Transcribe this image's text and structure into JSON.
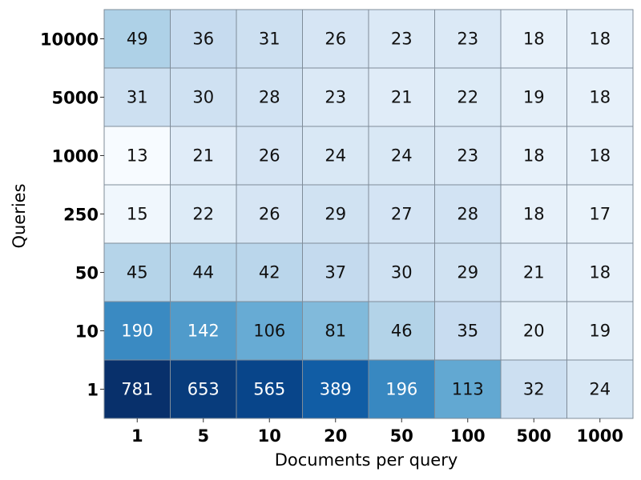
{
  "chart_data": {
    "type": "heatmap",
    "title": "",
    "xlabel": "Documents per query",
    "ylabel": "Queries",
    "x_categories": [
      "1",
      "5",
      "10",
      "20",
      "50",
      "100",
      "500",
      "1000"
    ],
    "y_categories": [
      "10000",
      "5000",
      "1000",
      "250",
      "50",
      "10",
      "1"
    ],
    "values": [
      [
        49,
        36,
        31,
        26,
        23,
        23,
        18,
        18
      ],
      [
        31,
        30,
        28,
        23,
        21,
        22,
        19,
        18
      ],
      [
        13,
        21,
        26,
        24,
        24,
        23,
        18,
        18
      ],
      [
        15,
        22,
        26,
        29,
        27,
        28,
        18,
        17
      ],
      [
        45,
        44,
        42,
        37,
        30,
        29,
        21,
        18
      ],
      [
        190,
        142,
        106,
        81,
        46,
        35,
        20,
        19
      ],
      [
        781,
        653,
        565,
        389,
        196,
        113,
        32,
        24
      ]
    ],
    "colormap": "Blues",
    "grid": true,
    "colors": {
      "low": "#f7fbff",
      "high": "#08306b",
      "cell_border": "#7f8c99"
    }
  }
}
